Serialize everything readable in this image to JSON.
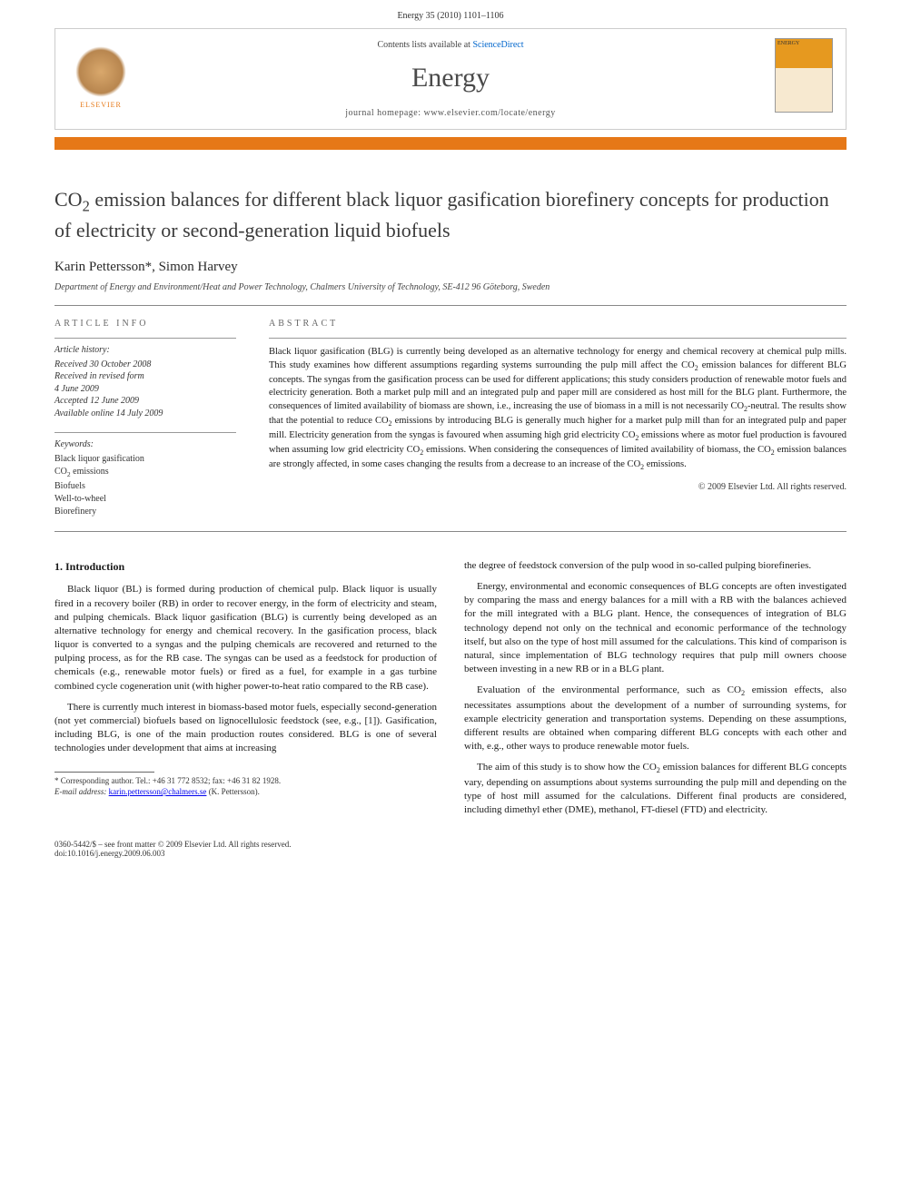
{
  "header": {
    "citation": "Energy 35 (2010) 1101–1106",
    "contents_text": "Contents lists available at ",
    "contents_link": "ScienceDirect",
    "journal_name": "Energy",
    "homepage_label": "journal homepage: ",
    "homepage_url": "www.elsevier.com/locate/energy",
    "publisher_name": "ELSEVIER",
    "cover_label": "ENERGY"
  },
  "article": {
    "title_html": "CO<sub>2</sub> emission balances for different black liquor gasification biorefinery concepts for production of electricity or second-generation liquid biofuels",
    "authors": "Karin Pettersson*, Simon Harvey",
    "affiliation": "Department of Energy and Environment/Heat and Power Technology, Chalmers University of Technology, SE-412 96 Göteborg, Sweden"
  },
  "info": {
    "label": "ARTICLE INFO",
    "history_hdr": "Article history:",
    "history": [
      "Received 30 October 2008",
      "Received in revised form",
      "4 June 2009",
      "Accepted 12 June 2009",
      "Available online 14 July 2009"
    ],
    "keywords_hdr": "Keywords:",
    "keywords": [
      "Black liquor gasification",
      "CO2 emissions",
      "Biofuels",
      "Well-to-wheel",
      "Biorefinery"
    ]
  },
  "abstract": {
    "label": "ABSTRACT",
    "text_html": "Black liquor gasification (BLG) is currently being developed as an alternative technology for energy and chemical recovery at chemical pulp mills. This study examines how different assumptions regarding systems surrounding the pulp mill affect the CO<sub>2</sub> emission balances for different BLG concepts. The syngas from the gasification process can be used for different applications; this study considers production of renewable motor fuels and electricity generation. Both a market pulp mill and an integrated pulp and paper mill are considered as host mill for the BLG plant. Furthermore, the consequences of limited availability of biomass are shown, i.e., increasing the use of biomass in a mill is not necessarily CO<sub>2</sub>-neutral. The results show that the potential to reduce CO<sub>2</sub> emissions by introducing BLG is generally much higher for a market pulp mill than for an integrated pulp and paper mill. Electricity generation from the syngas is favoured when assuming high grid electricity CO<sub>2</sub> emissions where as motor fuel production is favoured when assuming low grid electricity CO<sub>2</sub> emissions. When considering the consequences of limited availability of biomass, the CO<sub>2</sub> emission balances are strongly affected, in some cases changing the results from a decrease to an increase of the CO<sub>2</sub> emissions.",
    "copyright": "© 2009 Elsevier Ltd. All rights reserved."
  },
  "body": {
    "section1_title": "1. Introduction",
    "left_paras_html": [
      "Black liquor (BL) is formed during production of chemical pulp. Black liquor is usually fired in a recovery boiler (RB) in order to recover energy, in the form of electricity and steam, and pulping chemicals. Black liquor gasification (BLG) is currently being developed as an alternative technology for energy and chemical recovery. In the gasification process, black liquor is converted to a syngas and the pulping chemicals are recovered and returned to the pulping process, as for the RB case. The syngas can be used as a feedstock for production of chemicals (e.g., renewable motor fuels) or fired as a fuel, for example in a gas turbine combined cycle cogeneration unit (with higher power-to-heat ratio compared to the RB case).",
      "There is currently much interest in biomass-based motor fuels, especially second-generation (not yet commercial) biofuels based on lignocellulosic feedstock (see, e.g., [1]). Gasification, including BLG, is one of the main production routes considered. BLG is one of several technologies under development that aims at increasing"
    ],
    "right_paras_html": [
      "the degree of feedstock conversion of the pulp wood in so-called pulping biorefineries.",
      "Energy, environmental and economic consequences of BLG concepts are often investigated by comparing the mass and energy balances for a mill with a RB with the balances achieved for the mill integrated with a BLG plant. Hence, the consequences of integration of BLG technology depend not only on the technical and economic performance of the technology itself, but also on the type of host mill assumed for the calculations. This kind of comparison is natural, since implementation of BLG technology requires that pulp mill owners choose between investing in a new RB or in a BLG plant.",
      "Evaluation of the environmental performance, such as CO<sub>2</sub> emission effects, also necessitates assumptions about the development of a number of surrounding systems, for example electricity generation and transportation systems. Depending on these assumptions, different results are obtained when comparing different BLG concepts with each other and with, e.g., other ways to produce renewable motor fuels.",
      "The aim of this study is to show how the CO<sub>2</sub> emission balances for different BLG concepts vary, depending on assumptions about systems surrounding the pulp mill and depending on the type of host mill assumed for the calculations. Different final products are considered, including dimethyl ether (DME), methanol, FT-diesel (FTD) and electricity."
    ]
  },
  "footnote": {
    "corr": "* Corresponding author. Tel.: +46 31 772 8532; fax: +46 31 82 1928.",
    "email_label": "E-mail address: ",
    "email": "karin.pettersson@chalmers.se",
    "email_suffix": " (K. Pettersson)."
  },
  "footer": {
    "line1": "0360-5442/$ – see front matter © 2009 Elsevier Ltd. All rights reserved.",
    "line2": "doi:10.1016/j.energy.2009.06.003"
  },
  "colors": {
    "orange": "#e67817",
    "link": "#0066cc",
    "rule": "#888888"
  }
}
